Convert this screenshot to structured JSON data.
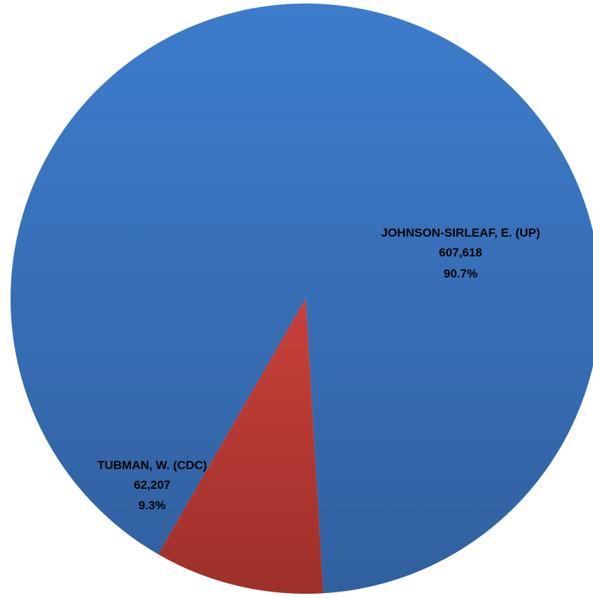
{
  "chart_data": {
    "type": "pie",
    "title": "",
    "slices": [
      {
        "label": "JOHNSON-SIRLEAF, E. (UP)",
        "value": 607618,
        "value_text": "607,618",
        "percent_text": "90.7%",
        "color": "#3d7ccc",
        "color_dark": "#30609f"
      },
      {
        "label": "TUBMAN, W. (CDC)",
        "value": 62207,
        "value_text": "62,207",
        "percent_text": "9.3%",
        "color": "#c8403a",
        "color_dark": "#9d3029"
      }
    ],
    "legend": "none",
    "data_labels": "inside"
  }
}
